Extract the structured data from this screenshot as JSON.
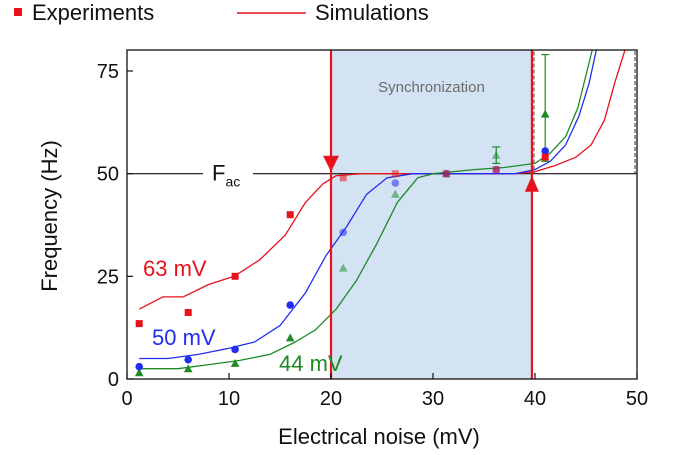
{
  "chart_data": {
    "type": "scatter",
    "xlabel": "Electrical noise (mV)",
    "ylabel": "Frequency (Hz)",
    "xlim": [
      0,
      50
    ],
    "ylim": [
      0,
      80
    ],
    "xticks": [
      "0",
      "10",
      "20",
      "30",
      "40",
      "50"
    ],
    "yticks": [
      "0",
      "25",
      "50",
      "75"
    ],
    "grid": false,
    "legend": {
      "position": "top",
      "experiments_label": "Experiments",
      "simulations_label": "Simulations"
    },
    "reference_line": {
      "y": 50,
      "label_main": "F",
      "label_sub": "ac"
    },
    "region": {
      "label": "Synchronization",
      "x": [
        20,
        39.7
      ]
    },
    "series": [
      {
        "name": "63 mV",
        "color": "#e8121b",
        "marker": "square",
        "experiments": [
          {
            "x": 1.2,
            "y": 13.5
          },
          {
            "x": 6.0,
            "y": 16.2
          },
          {
            "x": 10.6,
            "y": 25.0
          },
          {
            "x": 16.0,
            "y": 40.0
          },
          {
            "x": 21.2,
            "y": 49.0
          },
          {
            "x": 26.3,
            "y": 50.0
          },
          {
            "x": 31.3,
            "y": 50.0
          },
          {
            "x": 36.2,
            "y": 51.0
          },
          {
            "x": 41.0,
            "y": 54.0
          }
        ],
        "simulation": [
          [
            1.2,
            17
          ],
          [
            3.5,
            20
          ],
          [
            5.5,
            20
          ],
          [
            8,
            23
          ],
          [
            10.5,
            25
          ],
          [
            13,
            29
          ],
          [
            15.5,
            35
          ],
          [
            17.5,
            43
          ],
          [
            19.2,
            47.5
          ],
          [
            20.5,
            49.5
          ],
          [
            23,
            50
          ],
          [
            30,
            50
          ],
          [
            38,
            50
          ],
          [
            40,
            50.5
          ],
          [
            42,
            52
          ],
          [
            44,
            54
          ],
          [
            45.5,
            57
          ],
          [
            46.8,
            63
          ],
          [
            47.8,
            72
          ],
          [
            48.8,
            80
          ]
        ]
      },
      {
        "name": "50 mV",
        "color": "#1f2ef0",
        "marker": "circle",
        "experiments": [
          {
            "x": 1.2,
            "y": 3.0
          },
          {
            "x": 6.0,
            "y": 4.7
          },
          {
            "x": 10.6,
            "y": 7.2
          },
          {
            "x": 16.0,
            "y": 18.0
          },
          {
            "x": 21.2,
            "y": 35.7
          },
          {
            "x": 26.3,
            "y": 47.7
          },
          {
            "x": 31.3,
            "y": 50.0
          },
          {
            "x": 36.2,
            "y": 51.0
          },
          {
            "x": 41.0,
            "y": 55.5
          }
        ],
        "simulation": [
          [
            1.2,
            5
          ],
          [
            4,
            5
          ],
          [
            7,
            6
          ],
          [
            10,
            7.5
          ],
          [
            12.5,
            9
          ],
          [
            15,
            13
          ],
          [
            17.5,
            21
          ],
          [
            19.5,
            30
          ],
          [
            21.5,
            37
          ],
          [
            23.5,
            45
          ],
          [
            25.5,
            49
          ],
          [
            28,
            50
          ],
          [
            38,
            50
          ],
          [
            40,
            51
          ],
          [
            41.5,
            53
          ],
          [
            43,
            57
          ],
          [
            44.3,
            64
          ],
          [
            45.3,
            72
          ],
          [
            46,
            80
          ]
        ]
      },
      {
        "name": "44 mV",
        "color": "#1e8a25",
        "marker": "triangle",
        "experiments": [
          {
            "x": 1.2,
            "y": 1.5
          },
          {
            "x": 6.0,
            "y": 2.5
          },
          {
            "x": 10.6,
            "y": 3.8
          },
          {
            "x": 16.0,
            "y": 10.0
          },
          {
            "x": 21.2,
            "y": 27.0
          },
          {
            "x": 26.3,
            "y": 45.0
          },
          {
            "x": 31.3,
            "y": 50.0
          },
          {
            "x": 36.2,
            "y": 54.5
          },
          {
            "x": 41.0,
            "y": 64.5
          }
        ],
        "simulation": [
          [
            1.2,
            2.5
          ],
          [
            5,
            2.5
          ],
          [
            8,
            3.5
          ],
          [
            11,
            4.5
          ],
          [
            14,
            6
          ],
          [
            16.5,
            9
          ],
          [
            18.5,
            12
          ],
          [
            20.5,
            17
          ],
          [
            22.5,
            24
          ],
          [
            24.5,
            33
          ],
          [
            26.5,
            43
          ],
          [
            28.5,
            49
          ],
          [
            30,
            50
          ],
          [
            34,
            51
          ],
          [
            37,
            51.5
          ],
          [
            40,
            52.5
          ],
          [
            41.5,
            55
          ],
          [
            43,
            59
          ],
          [
            44.2,
            66
          ],
          [
            45,
            74
          ],
          [
            45.6,
            80
          ]
        ]
      }
    ],
    "error_bars": [
      {
        "series": 2,
        "x": 36.2,
        "low": 52.5,
        "high": 56.5
      },
      {
        "series": 2,
        "x": 41.0,
        "low": 53.0,
        "high": 79.0
      }
    ],
    "arrows": [
      {
        "x": 20.0,
        "direction": "down",
        "at_y": 50
      },
      {
        "x": 39.7,
        "direction": "up",
        "at_y": 50
      }
    ]
  }
}
